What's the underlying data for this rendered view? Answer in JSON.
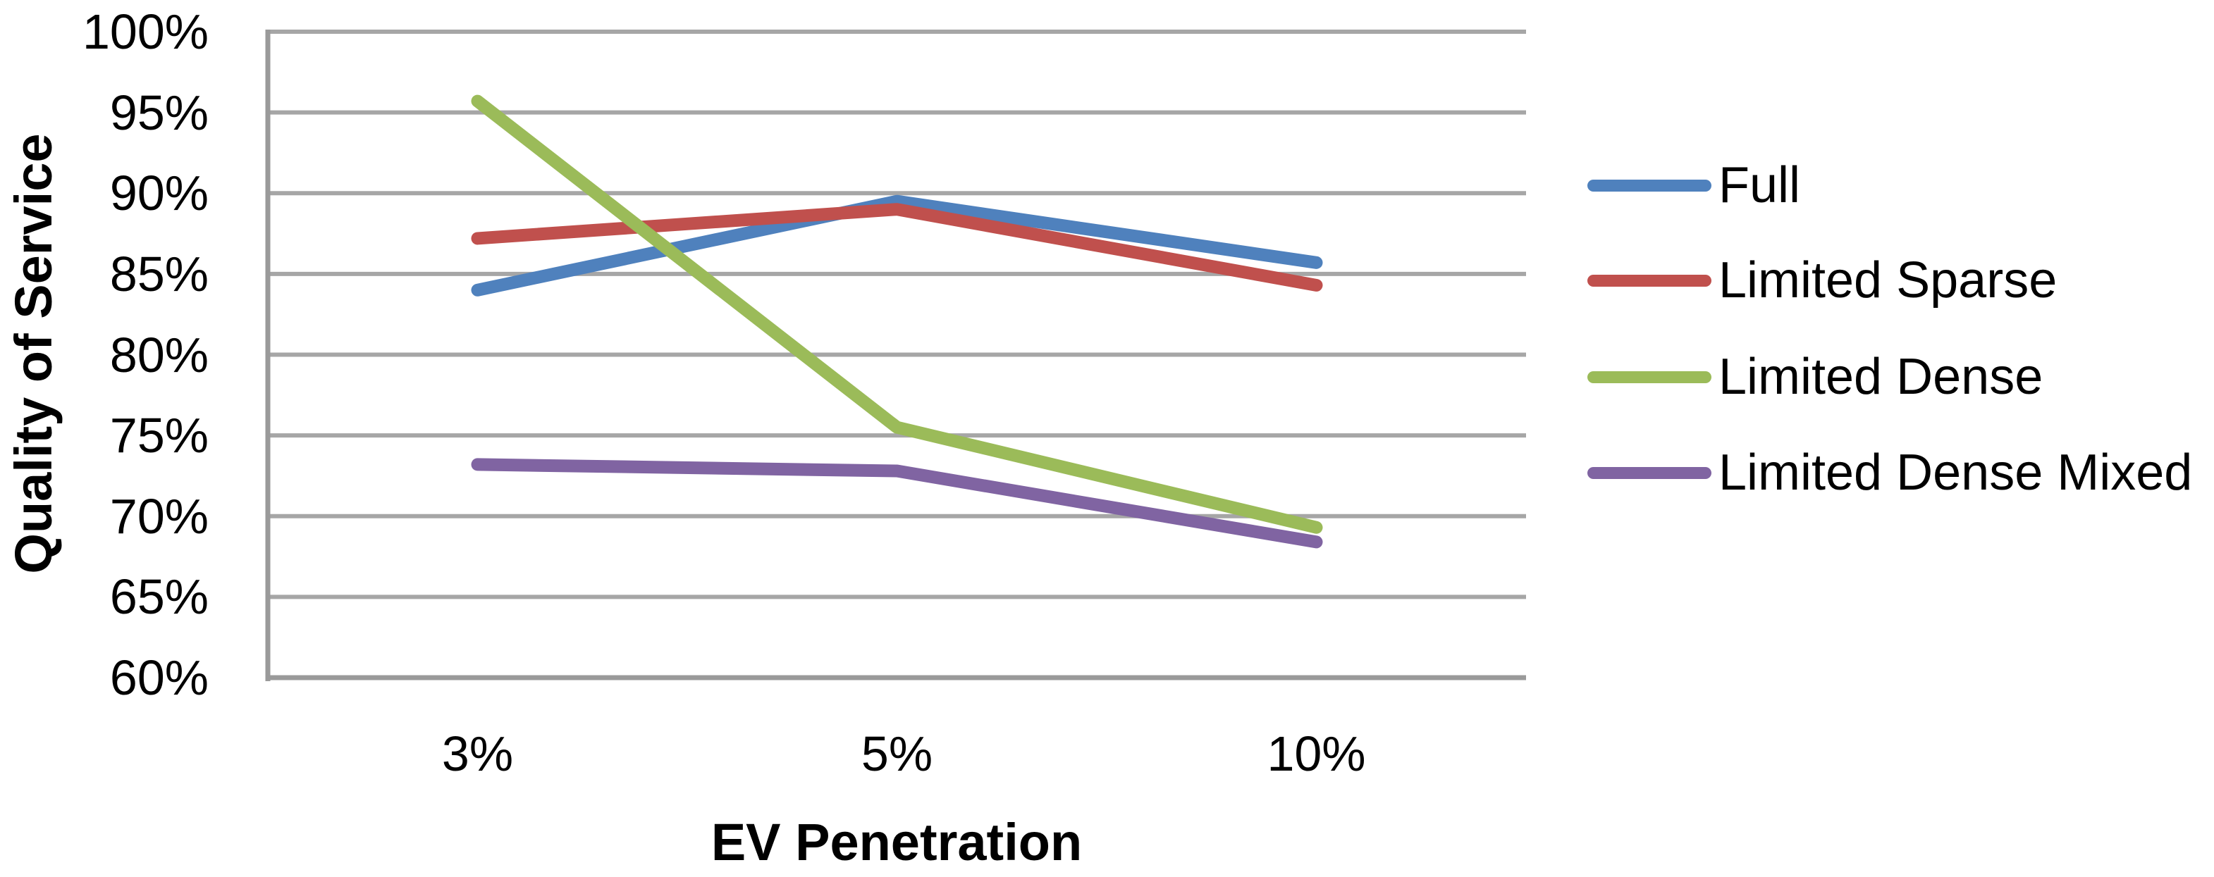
{
  "chart_data": {
    "type": "line",
    "title": "",
    "xlabel": "EV Penetration",
    "ylabel": "Quality of Service",
    "categories": [
      "3%",
      "5%",
      "10%"
    ],
    "y_ticks": [
      "100%",
      "95%",
      "90%",
      "85%",
      "80%",
      "75%",
      "70%",
      "65%",
      "60%"
    ],
    "y_tick_values": [
      100,
      95,
      90,
      85,
      80,
      75,
      70,
      65,
      60
    ],
    "ylim": [
      60,
      100
    ],
    "grid": "horizontal",
    "legend_position": "right",
    "series": [
      {
        "name": "Full",
        "color": "#4F81BD",
        "values": [
          84.0,
          89.5,
          85.7
        ]
      },
      {
        "name": "Limited Sparse",
        "color": "#C0504D",
        "values": [
          87.2,
          89.0,
          84.3
        ]
      },
      {
        "name": "Limited Dense",
        "color": "#9BBB59",
        "values": [
          95.7,
          75.5,
          69.3
        ]
      },
      {
        "name": "Limited Dense Mixed",
        "color": "#8064A2",
        "values": [
          73.2,
          72.8,
          68.4
        ]
      }
    ]
  },
  "colors": {
    "gridline": "#A6A6A6",
    "axis_line": "#9A9A9A",
    "text": "#000000",
    "background": "#FFFFFF"
  }
}
